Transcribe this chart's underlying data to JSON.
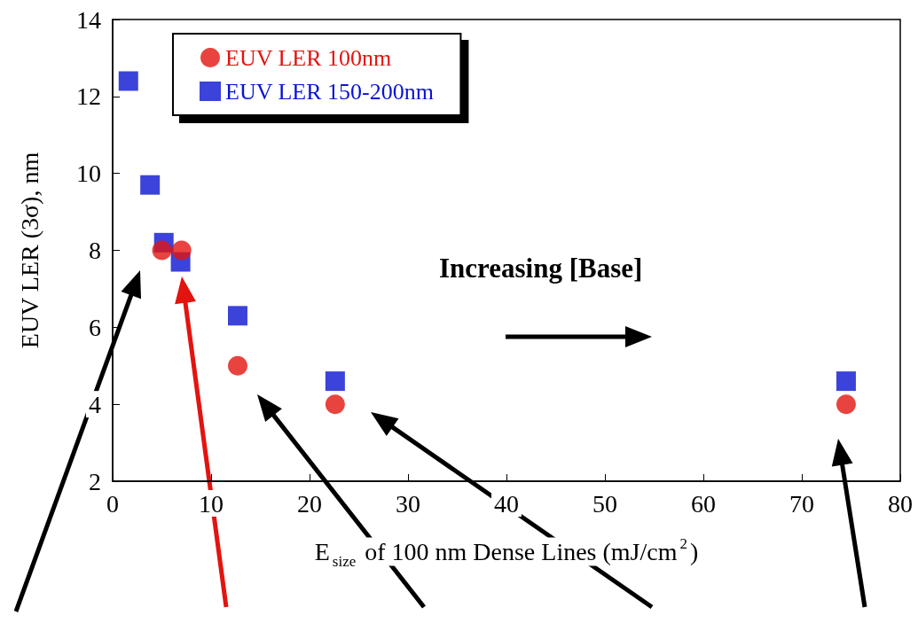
{
  "chart_data": {
    "type": "scatter",
    "xlabel": "E$_{size}$ of 100 nm Dense Lines (mJ/cm$^{2}$)",
    "ylabel": "EUV LER (3σ), nm",
    "annotations": [
      "Increasing [Base]"
    ],
    "xlim": [
      0,
      80
    ],
    "xticks": [
      0,
      10,
      20,
      30,
      40,
      50,
      60,
      70,
      80
    ],
    "ylim": [
      2,
      14
    ],
    "yticks": [
      2,
      4,
      6,
      8,
      10,
      12,
      14
    ],
    "grid": false,
    "legend": "top left",
    "series": [
      {
        "name": "EUV LER 100nm",
        "color": "#e3140f",
        "marker": "circle",
        "x": [
          5.0,
          7.0,
          12.7,
          22.6,
          74.5
        ],
        "values": [
          8.0,
          8.0,
          5.0,
          4.0,
          4.0
        ]
      },
      {
        "name": "EUV LER 150-200nm",
        "color": "#0a14d2",
        "marker": "square",
        "x": [
          1.6,
          3.8,
          5.2,
          6.9,
          12.7,
          22.6,
          74.5
        ],
        "values": [
          12.4,
          9.7,
          8.2,
          7.7,
          6.3,
          4.6,
          4.6
        ]
      }
    ]
  }
}
